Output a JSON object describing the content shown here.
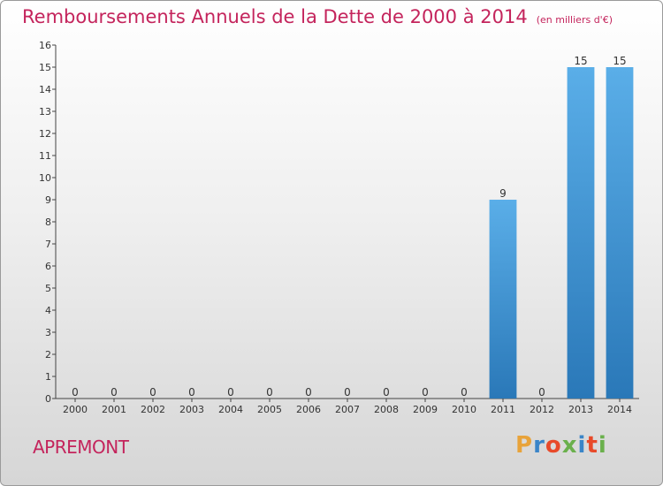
{
  "title": "Remboursements Annuels de la Dette de 2000 à 2014",
  "subtitle": "(en milliers d'€)",
  "commune": "APREMONT",
  "logo": {
    "text": "Proxiti",
    "colors": [
      "#e8a33a",
      "#3a85c8",
      "#e84a2a",
      "#6ab04c",
      "#3a85c8",
      "#e84a2a",
      "#6ab04c"
    ]
  },
  "chart_data": {
    "type": "bar",
    "categories": [
      "2000",
      "2001",
      "2002",
      "2003",
      "2004",
      "2005",
      "2006",
      "2007",
      "2008",
      "2009",
      "2010",
      "2011",
      "2012",
      "2013",
      "2014"
    ],
    "values": [
      0,
      0,
      0,
      0,
      0,
      0,
      0,
      0,
      0,
      0,
      0,
      9,
      0,
      15,
      15
    ],
    "title": "Remboursements Annuels de la Dette de 2000 à 2014",
    "subtitle": "(en milliers d'€)",
    "xlabel": "",
    "ylabel": "",
    "ylim": [
      0,
      16
    ],
    "yticks": [
      0,
      1,
      2,
      3,
      4,
      5,
      6,
      7,
      8,
      9,
      10,
      11,
      12,
      13,
      14,
      15,
      16
    ],
    "grid": false,
    "bar_color_top": "#5aaee8",
    "bar_color_bottom": "#2a78b8"
  }
}
